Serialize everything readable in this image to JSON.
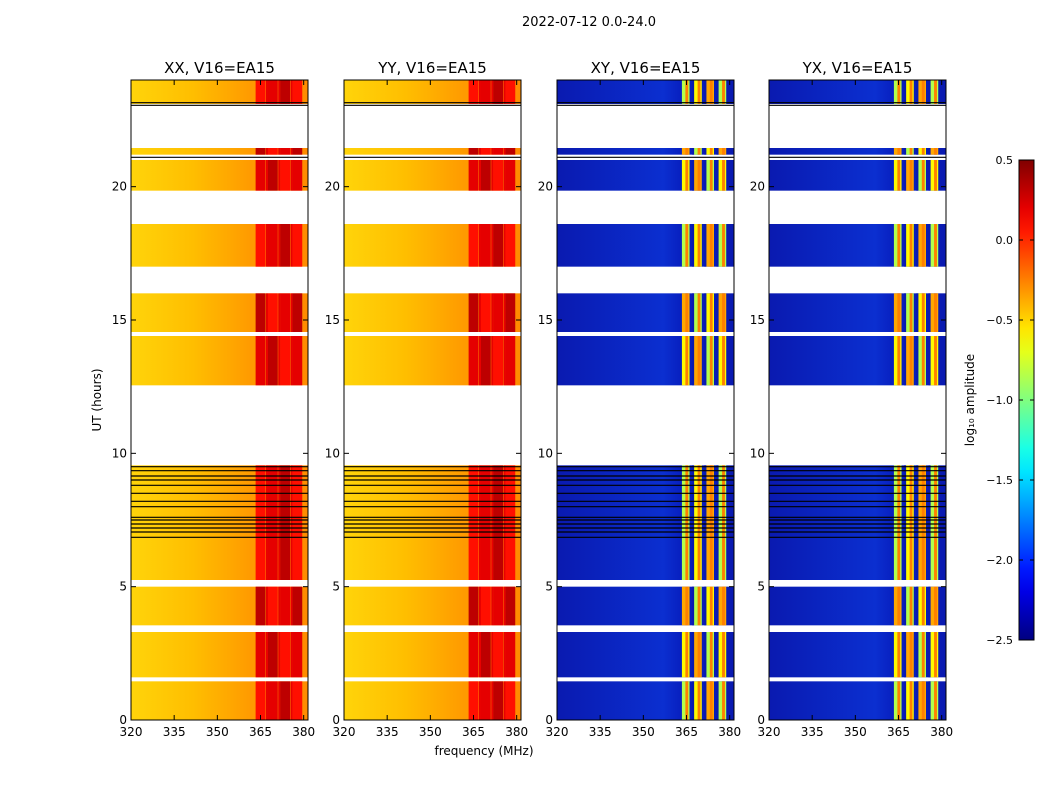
{
  "figure": {
    "suptitle": "2022-07-12 0.0-24.0",
    "xlabel": "frequency (MHz)",
    "ylabel": "UT (hours)"
  },
  "chart_data": {
    "type": "heatmap",
    "title": "2022-07-12 0.0-24.0",
    "xlabel": "frequency (MHz)",
    "ylabel": "UT (hours)",
    "xlim": [
      320,
      381.5
    ],
    "ylim": [
      0,
      24
    ],
    "xticks": [
      320,
      335,
      350,
      365,
      380
    ],
    "yticks": [
      0,
      5,
      10,
      15,
      20
    ],
    "panels": [
      {
        "title": "XX, V16=EA15",
        "kind": "parallel"
      },
      {
        "title": "YY, V16=EA15",
        "kind": "parallel"
      },
      {
        "title": "XY, V16=EA15",
        "kind": "cross"
      },
      {
        "title": "YX, V16=EA15",
        "kind": "cross"
      }
    ],
    "data_intervals_ut": [
      [
        0.0,
        1.45
      ],
      [
        1.6,
        3.3
      ],
      [
        3.55,
        5.0
      ],
      [
        5.25,
        9.55
      ],
      [
        12.55,
        14.4
      ],
      [
        14.55,
        16.0
      ],
      [
        17.0,
        18.6
      ],
      [
        19.85,
        21.0
      ],
      [
        21.2,
        21.45
      ],
      [
        23.1,
        24.0
      ]
    ],
    "flag_lines_ut": [
      6.85,
      7.05,
      7.2,
      7.35,
      7.5,
      7.6,
      8.0,
      8.2,
      8.5,
      8.8,
      9.0,
      9.15,
      9.35,
      9.5,
      21.1,
      23.05,
      23.15
    ],
    "rfi_band_mhz": [
      363,
      380
    ],
    "colorbar": {
      "label": "log₁₀ amplitude",
      "min": -2.5,
      "max": 0.5,
      "ticks": [
        0.5,
        0.0,
        -0.5,
        -1.0,
        -1.5,
        -2.0,
        -2.5
      ],
      "tick_labels": [
        "0.5",
        "0.0",
        "−0.5",
        "−1.0",
        "−1.5",
        "−2.0",
        "−2.5"
      ],
      "colormap": "jet"
    }
  }
}
